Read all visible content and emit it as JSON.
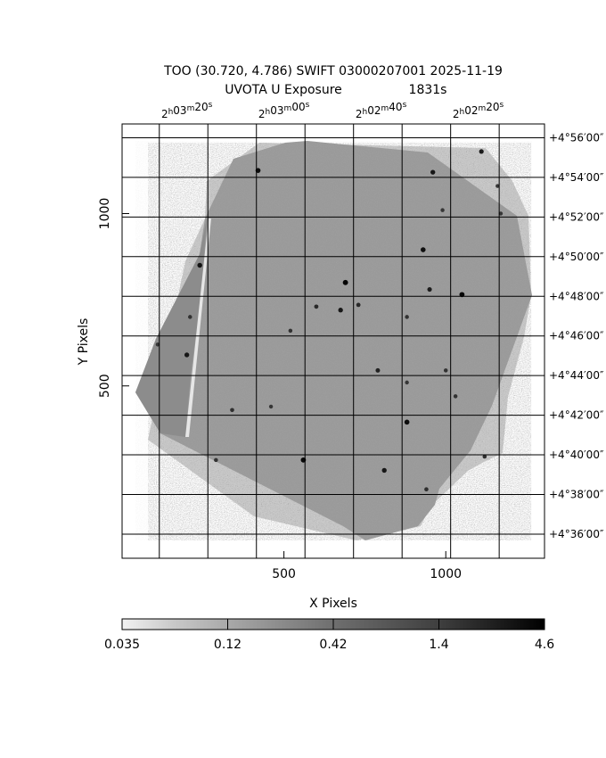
{
  "chart_data": {
    "type": "heatmap",
    "title_line1": "TOO (30.720, 4.786) SWIFT 03000207001 2025-11-19",
    "title_line2_label": "UVOTA U Exposure",
    "title_line2_value": "1831s",
    "xlabel": "X Pixels",
    "ylabel": "Y Pixels",
    "x_ticks": [
      {
        "value": 500,
        "label": "500"
      },
      {
        "value": 1000,
        "label": "1000"
      }
    ],
    "y_ticks": [
      {
        "value": 500,
        "label": "500"
      },
      {
        "value": 1000,
        "label": "1000"
      }
    ],
    "xlim": [
      0,
      1305
    ],
    "ylim": [
      0,
      1260
    ],
    "ra_ticks": [
      {
        "h": "2",
        "m": "03",
        "s": "20",
        "sup_h": "h",
        "sup_m": "m",
        "sup_s": "s",
        "x": 200
      },
      {
        "h": "2",
        "m": "03",
        "s": "00",
        "sup_h": "h",
        "sup_m": "m",
        "sup_s": "s",
        "x": 500
      },
      {
        "h": "2",
        "m": "02",
        "s": "40",
        "sup_h": "h",
        "sup_m": "m",
        "sup_s": "s",
        "x": 800
      },
      {
        "h": "2",
        "m": "02",
        "s": "20",
        "sup_h": "h",
        "sup_m": "m",
        "sup_s": "s",
        "x": 1100
      }
    ],
    "ra_grid_x": [
      115,
      265,
      415,
      565,
      715,
      865,
      1015,
      1165
    ],
    "dec_ticks": [
      {
        "label": "+4°56′00″",
        "y": 1220
      },
      {
        "label": "+4°54′00″",
        "y": 1105
      },
      {
        "label": "+4°52′00″",
        "y": 990
      },
      {
        "label": "+4°50′00″",
        "y": 875
      },
      {
        "label": "+4°48′00″",
        "y": 760
      },
      {
        "label": "+4°46′00″",
        "y": 645
      },
      {
        "label": "+4°44′00″",
        "y": 530
      },
      {
        "label": "+4°42′00″",
        "y": 415
      },
      {
        "label": "+4°40′00″",
        "y": 300
      },
      {
        "label": "+4°38′00″",
        "y": 185
      },
      {
        "label": "+4°36′00″",
        "y": 70
      }
    ],
    "colorbar": {
      "scale": "log",
      "min": 0.035,
      "max": 4.6,
      "labels": [
        "0.035",
        "0.12",
        "0.42",
        "1.4",
        "4.6"
      ]
    },
    "sources": [
      {
        "x": 420,
        "y": 1125,
        "v": 3.0
      },
      {
        "x": 690,
        "y": 800,
        "v": 4.0
      },
      {
        "x": 1050,
        "y": 765,
        "v": 3.5
      },
      {
        "x": 930,
        "y": 895,
        "v": 2.8
      },
      {
        "x": 960,
        "y": 1120,
        "v": 2.2
      },
      {
        "x": 1110,
        "y": 1180,
        "v": 2.0
      },
      {
        "x": 880,
        "y": 395,
        "v": 3.0
      },
      {
        "x": 560,
        "y": 285,
        "v": 3.5
      },
      {
        "x": 810,
        "y": 255,
        "v": 2.2
      },
      {
        "x": 675,
        "y": 720,
        "v": 2.2
      },
      {
        "x": 240,
        "y": 850,
        "v": 2.5
      },
      {
        "x": 200,
        "y": 590,
        "v": 2.2
      },
      {
        "x": 950,
        "y": 780,
        "v": 1.8
      },
      {
        "x": 790,
        "y": 545,
        "v": 1.5
      },
      {
        "x": 600,
        "y": 730,
        "v": 1.2
      },
      {
        "x": 730,
        "y": 735,
        "v": 1.2
      },
      {
        "x": 340,
        "y": 430,
        "v": 1.0
      },
      {
        "x": 1120,
        "y": 295,
        "v": 1.0
      },
      {
        "x": 940,
        "y": 200,
        "v": 1.0
      },
      {
        "x": 290,
        "y": 285,
        "v": 0.9
      },
      {
        "x": 110,
        "y": 620,
        "v": 0.8
      },
      {
        "x": 1000,
        "y": 545,
        "v": 0.9
      },
      {
        "x": 1030,
        "y": 470,
        "v": 0.9
      },
      {
        "x": 880,
        "y": 700,
        "v": 0.9
      },
      {
        "x": 520,
        "y": 660,
        "v": 0.9
      },
      {
        "x": 210,
        "y": 700,
        "v": 0.9
      },
      {
        "x": 990,
        "y": 1010,
        "v": 0.8
      },
      {
        "x": 1160,
        "y": 1080,
        "v": 0.8
      },
      {
        "x": 1170,
        "y": 1000,
        "v": 0.8
      },
      {
        "x": 460,
        "y": 440,
        "v": 0.8
      },
      {
        "x": 880,
        "y": 510,
        "v": 0.8
      }
    ]
  }
}
